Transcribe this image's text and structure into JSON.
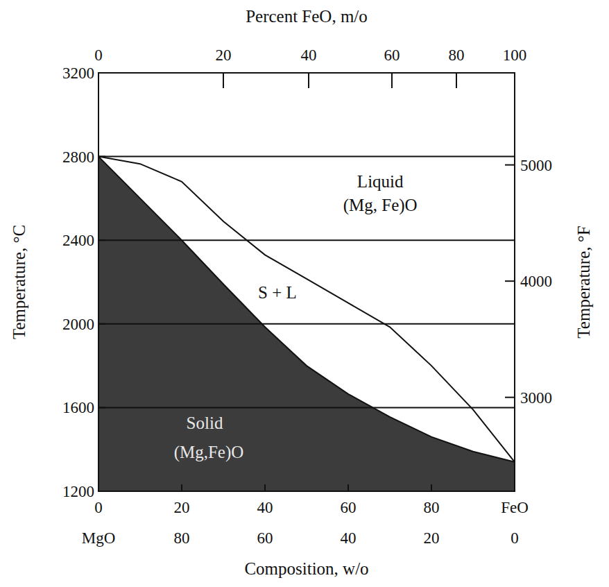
{
  "chart_data": {
    "type": "phase_diagram",
    "xlabel": "Composition, w/o",
    "top_xlabel": "Percent FeO, m/o",
    "ylabel": "Temperature, °C",
    "y2label": "Temperature, °F",
    "xlim": [
      0,
      100
    ],
    "xticks": [
      0,
      20,
      40,
      60,
      80,
      {
        "value": 100,
        "label": "FeO"
      }
    ],
    "x2ticks": [
      {
        "value": 0,
        "label": "MgO"
      },
      {
        "value": 20,
        "label": "80"
      },
      {
        "value": 40,
        "label": "60"
      },
      {
        "value": 60,
        "label": "40"
      },
      {
        "value": 80,
        "label": "20"
      },
      {
        "value": 100,
        "label": "0"
      }
    ],
    "top_xticks": [
      {
        "value": 0,
        "label": "0"
      },
      {
        "value": 30,
        "label": "20"
      },
      {
        "value": 50.5,
        "label": "40"
      },
      {
        "value": 70.5,
        "label": "60"
      },
      {
        "value": 86,
        "label": "80"
      },
      {
        "value": 100,
        "label": "100"
      }
    ],
    "ylim": [
      1200,
      3200
    ],
    "yticks": [
      1200,
      1600,
      2000,
      2400,
      2800,
      3200
    ],
    "y2lim": [
      2192,
      5792
    ],
    "y2ticks": [
      3000,
      4000,
      5000
    ],
    "grid": true,
    "x": [
      0,
      10,
      20,
      30,
      40,
      50,
      60,
      70,
      80,
      90,
      100
    ],
    "series": [
      {
        "type": "line",
        "color": "#111111",
        "values": [
          2800,
          2765,
          2680,
          2490,
          2330,
          2215,
          2100,
          1985,
          1800,
          1590,
          1340
        ]
      },
      {
        "type": "area",
        "color": "#3c3c3c",
        "values": [
          2800,
          2600,
          2400,
          2190,
          1985,
          1800,
          1665,
          1555,
          1460,
          1390,
          1340
        ]
      }
    ],
    "annotations": [
      {
        "text": "Liquid",
        "x": 67.7,
        "y": 2680
      },
      {
        "text": "(Mg, Fe)O",
        "x": 67.7,
        "y": 2565
      },
      {
        "text": "S + L",
        "x": 43,
        "y": 2150
      },
      {
        "text": "Solid",
        "x": 25.5,
        "y": 1525
      },
      {
        "text": "(Mg,Fe)O",
        "x": 26.5,
        "y": 1385
      }
    ]
  }
}
